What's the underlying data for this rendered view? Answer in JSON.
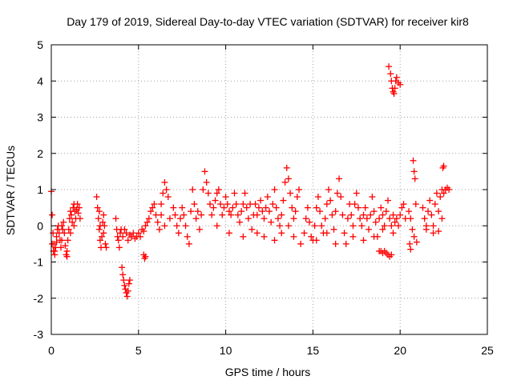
{
  "chart_data": {
    "type": "scatter",
    "title": "Day 179 of 2019, Sidereal Day-to-day VTEC variation (SDTVAR) for receiver kir8",
    "xlabel": "GPS time / hours",
    "ylabel": "SDTVAR / TECUs",
    "xlim": [
      0,
      25
    ],
    "ylim": [
      -3,
      5
    ],
    "xticks": [
      0,
      5,
      10,
      15,
      20,
      25
    ],
    "yticks": [
      -3,
      -2,
      -1,
      0,
      1,
      2,
      3,
      4,
      5
    ],
    "x_tick_labels": [
      "0",
      "5",
      "10",
      "15",
      "20",
      "25"
    ],
    "y_tick_labels": [
      "-3",
      "-2",
      "-1",
      "0",
      "1",
      "2",
      "3",
      "4",
      "5"
    ],
    "grid": true,
    "marker": "+",
    "color": "#ff0000",
    "series": [
      {
        "name": "SDTVAR",
        "points": [
          [
            0.0,
            0.95
          ],
          [
            0.05,
            0.3
          ],
          [
            0.1,
            -0.2
          ],
          [
            0.15,
            -0.5
          ],
          [
            0.2,
            -0.7
          ],
          [
            0.25,
            -0.6
          ],
          [
            0.3,
            -0.3
          ],
          [
            0.35,
            -0.1
          ],
          [
            0.4,
            0.0
          ],
          [
            0.45,
            -0.2
          ],
          [
            0.5,
            -0.4
          ],
          [
            0.55,
            -0.6
          ],
          [
            0.6,
            -0.4
          ],
          [
            0.65,
            -0.1
          ],
          [
            0.7,
            0.1
          ],
          [
            0.75,
            -0.2
          ],
          [
            0.8,
            -0.55
          ],
          [
            0.85,
            -0.8
          ],
          [
            0.9,
            -0.7
          ],
          [
            0.95,
            -0.4
          ],
          [
            1.0,
            -0.1
          ],
          [
            1.05,
            0.2
          ],
          [
            1.1,
            0.4
          ],
          [
            1.15,
            0.3
          ],
          [
            1.2,
            0.1
          ],
          [
            1.25,
            0.5
          ],
          [
            1.3,
            0.6
          ],
          [
            1.35,
            0.4
          ],
          [
            1.4,
            0.2
          ],
          [
            1.45,
            0.45
          ],
          [
            1.5,
            0.6
          ],
          [
            1.55,
            0.35
          ],
          [
            1.6,
            0.5
          ],
          [
            1.65,
            0.2
          ],
          [
            0.05,
            -0.5
          ],
          [
            0.12,
            -0.7
          ],
          [
            0.2,
            -0.8
          ],
          [
            0.9,
            -0.85
          ],
          [
            1.1,
            -0.2
          ],
          [
            0.3,
            -0.45
          ],
          [
            0.6,
            0.0
          ],
          [
            1.3,
            0.0
          ],
          [
            2.6,
            0.8
          ],
          [
            2.65,
            0.5
          ],
          [
            2.7,
            0.2
          ],
          [
            2.75,
            -0.1
          ],
          [
            2.8,
            -0.4
          ],
          [
            2.85,
            -0.6
          ],
          [
            2.9,
            -0.3
          ],
          [
            2.95,
            0.1
          ],
          [
            3.0,
            0.3
          ],
          [
            3.05,
            0.0
          ],
          [
            3.1,
            -0.5
          ],
          [
            3.15,
            -0.6
          ],
          [
            3.0,
            -0.2
          ],
          [
            2.8,
            0.0
          ],
          [
            2.75,
            0.4
          ],
          [
            3.7,
            0.2
          ],
          [
            3.75,
            -0.1
          ],
          [
            3.8,
            -0.3
          ],
          [
            3.85,
            -0.4
          ],
          [
            3.9,
            -0.6
          ],
          [
            3.95,
            -0.2
          ],
          [
            4.0,
            -0.1
          ],
          [
            4.1,
            -0.3
          ],
          [
            4.2,
            -0.1
          ],
          [
            4.3,
            -0.2
          ],
          [
            4.4,
            -0.4
          ],
          [
            4.5,
            -0.25
          ],
          [
            4.6,
            -0.3
          ],
          [
            4.7,
            -0.2
          ],
          [
            4.8,
            -0.35
          ],
          [
            4.9,
            -0.3
          ],
          [
            5.0,
            -0.2
          ],
          [
            5.1,
            -0.3
          ],
          [
            5.2,
            -0.1
          ],
          [
            5.3,
            -0.15
          ],
          [
            5.4,
            0.0
          ],
          [
            4.05,
            -1.15
          ],
          [
            4.1,
            -1.35
          ],
          [
            4.15,
            -1.5
          ],
          [
            4.2,
            -1.65
          ],
          [
            4.25,
            -1.75
          ],
          [
            4.3,
            -1.85
          ],
          [
            4.35,
            -1.95
          ],
          [
            4.4,
            -1.8
          ],
          [
            4.45,
            -1.6
          ],
          [
            4.5,
            -1.5
          ],
          [
            5.3,
            -0.8
          ],
          [
            5.35,
            -0.9
          ],
          [
            5.4,
            -0.85
          ],
          [
            5.5,
            0.1
          ],
          [
            5.6,
            0.2
          ],
          [
            5.7,
            0.4
          ],
          [
            5.8,
            0.5
          ],
          [
            5.9,
            0.6
          ],
          [
            6.0,
            0.3
          ],
          [
            6.1,
            0.1
          ],
          [
            6.2,
            -0.1
          ],
          [
            6.3,
            0.6
          ],
          [
            6.4,
            0.9
          ],
          [
            6.5,
            1.2
          ],
          [
            6.6,
            1.0
          ],
          [
            6.7,
            0.8
          ],
          [
            6.3,
            0.3
          ],
          [
            6.5,
            0.0
          ],
          [
            6.8,
            0.2
          ],
          [
            7.0,
            0.5
          ],
          [
            7.1,
            0.3
          ],
          [
            7.2,
            0.0
          ],
          [
            7.3,
            -0.2
          ],
          [
            7.4,
            0.2
          ],
          [
            7.5,
            0.5
          ],
          [
            7.6,
            0.3
          ],
          [
            7.7,
            0.0
          ],
          [
            7.8,
            -0.3
          ],
          [
            7.9,
            -0.5
          ],
          [
            8.0,
            0.4
          ],
          [
            8.1,
            1.0
          ],
          [
            8.2,
            0.6
          ],
          [
            8.3,
            0.2
          ],
          [
            8.4,
            0.4
          ],
          [
            8.5,
            -0.1
          ],
          [
            8.6,
            0.3
          ],
          [
            8.7,
            1.0
          ],
          [
            8.8,
            1.5
          ],
          [
            8.9,
            1.2
          ],
          [
            9.0,
            0.9
          ],
          [
            9.1,
            0.6
          ],
          [
            9.2,
            0.3
          ],
          [
            9.3,
            0.5
          ],
          [
            9.4,
            0.7
          ],
          [
            9.5,
            0.9
          ],
          [
            9.6,
            1.0
          ],
          [
            9.7,
            0.6
          ],
          [
            9.8,
            0.3
          ],
          [
            9.9,
            0.5
          ],
          [
            10.0,
            0.8
          ],
          [
            10.1,
            0.6
          ],
          [
            10.2,
            0.4
          ],
          [
            10.3,
            0.3
          ],
          [
            10.4,
            0.5
          ],
          [
            10.5,
            0.9
          ],
          [
            10.6,
            0.6
          ],
          [
            10.7,
            0.3
          ],
          [
            10.8,
            0.1
          ],
          [
            10.9,
            0.4
          ],
          [
            11.0,
            0.6
          ],
          [
            11.1,
            0.9
          ],
          [
            11.2,
            0.5
          ],
          [
            11.3,
            0.2
          ],
          [
            11.4,
            0.6
          ],
          [
            11.5,
            -0.1
          ],
          [
            11.6,
            0.3
          ],
          [
            11.7,
            0.6
          ],
          [
            11.8,
            0.3
          ],
          [
            11.9,
            0.5
          ],
          [
            12.0,
            0.7
          ],
          [
            12.1,
            0.4
          ],
          [
            12.2,
            0.2
          ],
          [
            12.3,
            0.5
          ],
          [
            12.4,
            0.8
          ],
          [
            12.5,
            0.4
          ],
          [
            12.6,
            0.1
          ],
          [
            12.7,
            0.6
          ],
          [
            12.8,
            1.0
          ],
          [
            12.9,
            0.5
          ],
          [
            13.0,
            0.2
          ],
          [
            13.1,
            0.0
          ],
          [
            13.2,
            0.3
          ],
          [
            13.3,
            0.7
          ],
          [
            13.4,
            1.2
          ],
          [
            13.5,
            1.6
          ],
          [
            13.6,
            1.3
          ],
          [
            13.7,
            0.9
          ],
          [
            13.8,
            0.5
          ],
          [
            13.9,
            0.2
          ],
          [
            14.0,
            0.4
          ],
          [
            14.1,
            0.8
          ],
          [
            14.2,
            1.0
          ],
          [
            9.5,
            0.0
          ],
          [
            10.2,
            -0.2
          ],
          [
            11.0,
            -0.3
          ],
          [
            11.8,
            -0.2
          ],
          [
            12.2,
            -0.3
          ],
          [
            12.8,
            -0.4
          ],
          [
            13.2,
            -0.2
          ],
          [
            13.6,
            0.0
          ],
          [
            13.9,
            -0.3
          ],
          [
            14.3,
            -0.5
          ],
          [
            14.5,
            -0.2
          ],
          [
            14.6,
            0.2
          ],
          [
            14.7,
            0.5
          ],
          [
            14.8,
            0.1
          ],
          [
            14.9,
            -0.3
          ],
          [
            15.0,
            -0.4
          ],
          [
            15.1,
            0.0
          ],
          [
            15.2,
            0.5
          ],
          [
            15.3,
            0.8
          ],
          [
            15.4,
            0.4
          ],
          [
            15.5,
            0.0
          ],
          [
            15.6,
            -0.2
          ],
          [
            15.7,
            0.2
          ],
          [
            15.8,
            0.6
          ],
          [
            15.9,
            1.0
          ],
          [
            16.0,
            0.7
          ],
          [
            16.1,
            0.3
          ],
          [
            16.2,
            -0.1
          ],
          [
            16.3,
            0.4
          ],
          [
            16.4,
            0.9
          ],
          [
            16.5,
            1.3
          ],
          [
            16.6,
            0.8
          ],
          [
            16.7,
            0.3
          ],
          [
            16.8,
            -0.2
          ],
          [
            16.9,
            -0.5
          ],
          [
            17.0,
            0.2
          ],
          [
            17.1,
            0.6
          ],
          [
            17.2,
            0.3
          ],
          [
            17.3,
            0.0
          ],
          [
            17.4,
            0.6
          ],
          [
            17.5,
            0.9
          ],
          [
            17.6,
            0.5
          ],
          [
            17.7,
            0.2
          ],
          [
            17.8,
            0.0
          ],
          [
            17.9,
            0.3
          ],
          [
            18.0,
            0.5
          ],
          [
            18.1,
            0.2
          ],
          [
            18.2,
            -0.1
          ],
          [
            18.3,
            0.3
          ],
          [
            18.4,
            0.8
          ],
          [
            18.5,
            0.4
          ],
          [
            18.6,
            0.1
          ],
          [
            18.7,
            -0.3
          ],
          [
            18.8,
            0.2
          ],
          [
            18.9,
            0.5
          ],
          [
            19.0,
            0.3
          ],
          [
            19.1,
            0.0
          ],
          [
            19.2,
            0.4
          ],
          [
            19.3,
            0.7
          ],
          [
            19.4,
            0.2
          ],
          [
            19.5,
            0.0
          ],
          [
            19.6,
            0.3
          ],
          [
            19.7,
            0.1
          ],
          [
            19.8,
            0.2
          ],
          [
            19.9,
            0.0
          ],
          [
            20.0,
            0.3
          ],
          [
            20.1,
            0.5
          ],
          [
            20.2,
            0.6
          ],
          [
            20.3,
            0.2
          ],
          [
            15.2,
            -0.4
          ],
          [
            15.8,
            -0.2
          ],
          [
            16.3,
            -0.5
          ],
          [
            17.3,
            -0.3
          ],
          [
            17.9,
            -0.4
          ],
          [
            18.5,
            -0.3
          ],
          [
            19.0,
            -0.1
          ],
          [
            19.6,
            -0.2
          ],
          [
            18.8,
            -0.7
          ],
          [
            18.9,
            -0.7
          ],
          [
            19.0,
            -0.75
          ],
          [
            19.1,
            -0.7
          ],
          [
            19.2,
            -0.75
          ],
          [
            19.3,
            -0.8
          ],
          [
            19.4,
            -0.85
          ],
          [
            19.5,
            -0.8
          ],
          [
            19.35,
            4.4
          ],
          [
            19.45,
            4.2
          ],
          [
            19.5,
            4.0
          ],
          [
            19.55,
            3.8
          ],
          [
            19.6,
            3.7
          ],
          [
            19.65,
            3.65
          ],
          [
            19.7,
            3.8
          ],
          [
            19.75,
            4.0
          ],
          [
            19.8,
            4.1
          ],
          [
            19.9,
            3.95
          ],
          [
            20.0,
            3.9
          ],
          [
            20.5,
            0.4
          ],
          [
            20.6,
            0.2
          ],
          [
            20.7,
            -0.1
          ],
          [
            20.8,
            -0.3
          ],
          [
            20.9,
            0.6
          ],
          [
            20.55,
            -0.5
          ],
          [
            20.6,
            -0.65
          ],
          [
            20.75,
            1.8
          ],
          [
            20.8,
            1.5
          ],
          [
            20.85,
            1.3
          ],
          [
            20.95,
            -0.45
          ],
          [
            21.3,
            0.5
          ],
          [
            21.4,
            0.2
          ],
          [
            21.5,
            0.0
          ],
          [
            21.6,
            0.4
          ],
          [
            21.7,
            0.7
          ],
          [
            21.8,
            0.3
          ],
          [
            21.9,
            0.0
          ],
          [
            22.0,
            0.6
          ],
          [
            22.1,
            0.9
          ],
          [
            22.2,
            0.4
          ],
          [
            22.3,
            0.8
          ],
          [
            22.4,
            1.0
          ],
          [
            22.5,
            0.9
          ],
          [
            22.6,
            1.0
          ],
          [
            22.7,
            1.05
          ],
          [
            22.8,
            1.0
          ],
          [
            21.5,
            -0.1
          ],
          [
            21.9,
            -0.2
          ],
          [
            22.2,
            -0.15
          ],
          [
            22.4,
            0.2
          ],
          [
            22.45,
            1.6
          ],
          [
            22.5,
            1.65
          ]
        ]
      }
    ]
  }
}
